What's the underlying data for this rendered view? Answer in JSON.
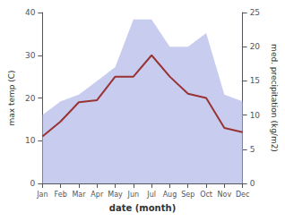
{
  "chart_data": {
    "type": "line",
    "xlabel": "date (month)",
    "ylabel": "max temp (C)",
    "y2label": "med. precipitation (kg/m2)",
    "categories": [
      "Jan",
      "Feb",
      "Mar",
      "Apr",
      "May",
      "Jun",
      "Jul",
      "Aug",
      "Sep",
      "Oct",
      "Nov",
      "Dec"
    ],
    "series": [
      {
        "type": "area",
        "color": "#b0b8e8",
        "axis": "y2",
        "values": [
          10,
          12,
          13,
          15,
          17,
          24,
          24,
          20,
          20,
          22,
          13,
          12
        ]
      },
      {
        "type": "line",
        "color": "#993333",
        "values": [
          11,
          14.5,
          19,
          19.5,
          25,
          25,
          30,
          25,
          21,
          20,
          13,
          12
        ]
      }
    ],
    "ylim": [
      0,
      40
    ],
    "yticks": [
      0,
      10,
      20,
      30,
      40
    ],
    "y2lim": [
      0,
      25
    ],
    "y2ticks": [
      0,
      5,
      10,
      15,
      20,
      25
    ],
    "grid": false
  }
}
